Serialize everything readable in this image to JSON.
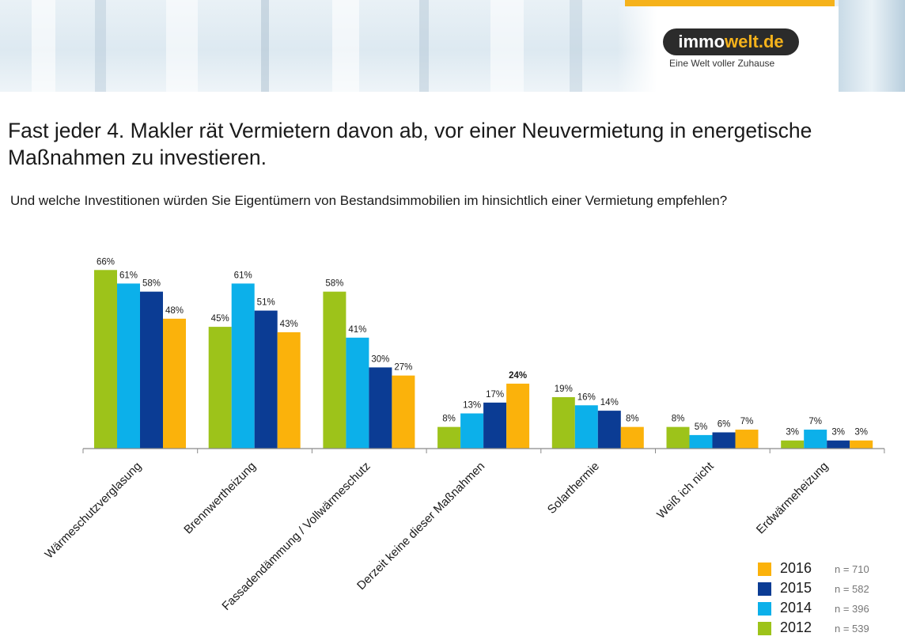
{
  "header": {
    "logo_part1": "immo",
    "logo_part2": "welt.de",
    "tagline": "Eine Welt voller Zuhause"
  },
  "title": "Fast jeder 4. Makler rät Vermietern davon ab, vor einer Neuvermietung in energetische Maßnahmen zu investieren.",
  "subtitle": "Und welche Investitionen würden Sie Eigentümern von Bestandsimmobilien im hinsichtlich einer Vermietung empfehlen?",
  "chart_data": {
    "type": "bar",
    "categories": [
      "Wärmeschutzverglasung",
      "Brennwertheizung",
      "Fassadendämmung / Vollwärmeschutz",
      "Derzeit keine dieser Maßnahmen",
      "Solarthermie",
      "Weiß ich nicht",
      "Erdwärmeheizung"
    ],
    "series": [
      {
        "name": "2012",
        "color": "#9dc31a",
        "values": [
          66,
          45,
          58,
          8,
          19,
          8,
          3
        ]
      },
      {
        "name": "2014",
        "color": "#0cb0ea",
        "values": [
          61,
          61,
          41,
          13,
          16,
          5,
          7
        ]
      },
      {
        "name": "2015",
        "color": "#0b3c94",
        "values": [
          58,
          51,
          30,
          17,
          14,
          6,
          3
        ]
      },
      {
        "name": "2016",
        "color": "#fbb20b",
        "values": [
          48,
          43,
          27,
          24,
          8,
          7,
          3
        ]
      }
    ],
    "value_suffix": "%",
    "bold_labels": [
      {
        "series": "2016",
        "category": "Derzeit keine dieser Maßnahmen"
      }
    ],
    "ylim": [
      0,
      70
    ],
    "grid": false,
    "legend_position": "bottom-right",
    "legend": [
      {
        "year": "2016",
        "n": "n = 710",
        "color": "#fbb20b"
      },
      {
        "year": "2015",
        "n": "n = 582",
        "color": "#0b3c94"
      },
      {
        "year": "2014",
        "n": "n = 396",
        "color": "#0cb0ea"
      },
      {
        "year": "2012",
        "n": "n = 539",
        "color": "#9dc31a"
      }
    ]
  }
}
